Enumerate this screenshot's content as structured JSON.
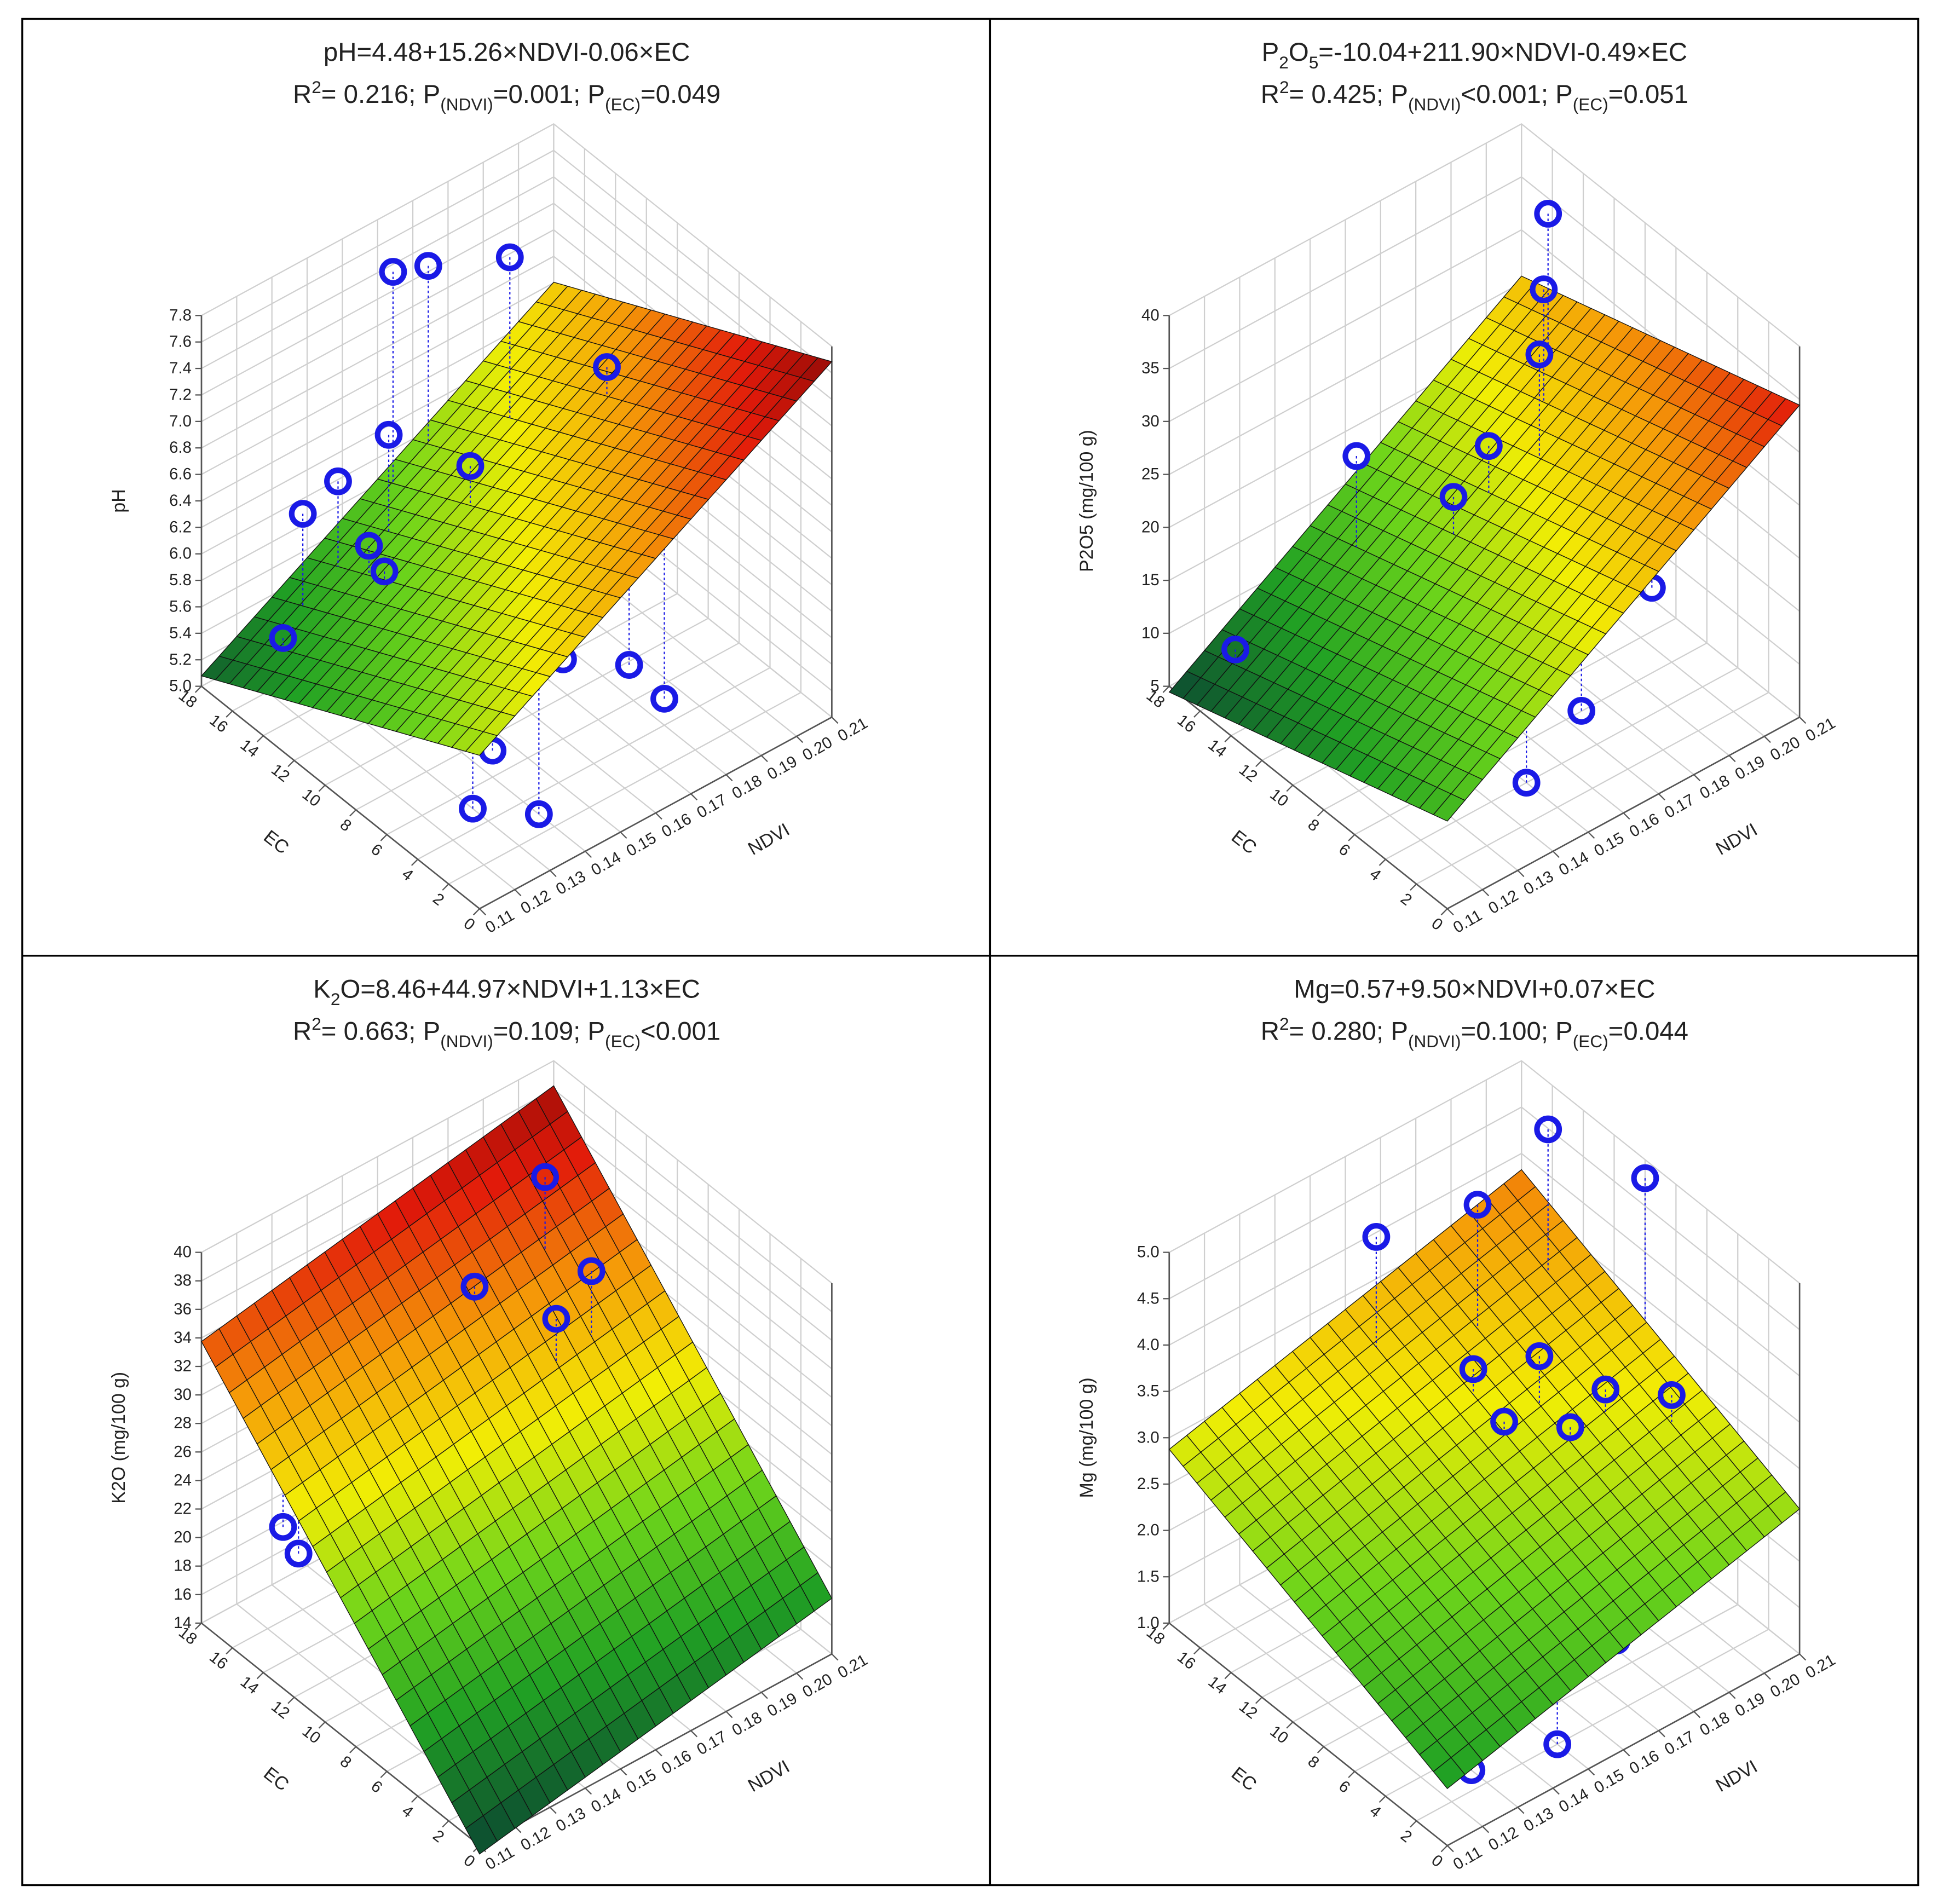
{
  "chart_data": [
    {
      "type": "surface3d",
      "title": [
        {
          "text": "pH=4.48+15.26×NDVI-0.06×EC"
        }
      ],
      "subtitle": [
        {
          "text": "R"
        },
        {
          "text": "2",
          "style": "sup"
        },
        {
          "text": "= 0.216; P"
        },
        {
          "text": "(NDVI)",
          "style": "sub"
        },
        {
          "text": "=0.001; P"
        },
        {
          "text": "(EC)",
          "style": "sub"
        },
        {
          "text": "=0.049"
        }
      ],
      "x_label": "NDVI",
      "y_label": "EC",
      "z_label": "pH",
      "surface": {
        "intercept": 4.48,
        "ndvi": 15.26,
        "ec": -0.06
      },
      "x": [
        0.18,
        0.17,
        0.16,
        0.19,
        0.15,
        0.14,
        0.16,
        0.17,
        0.18,
        0.13,
        0.14,
        0.14,
        0.15,
        0.15,
        0.12,
        0.13,
        0.15,
        0.16,
        0.17,
        0.14,
        0.13,
        0.14,
        0.18
      ],
      "y": [
        14,
        17,
        17,
        10,
        15,
        16,
        12,
        11,
        8,
        16,
        14,
        13,
        12,
        11,
        15,
        12,
        8,
        6,
        4,
        6,
        5,
        3,
        4
      ],
      "values": [
        7.6,
        7.4,
        7.5,
        7.0,
        6.6,
        6.3,
        6.5,
        6.4,
        6.4,
        6.2,
        6.0,
        5.9,
        6.0,
        5.9,
        5.5,
        5.4,
        5.5,
        5.6,
        5.6,
        5.2,
        5.0,
        5.0,
        5.2
      ],
      "xlim": [
        0.11,
        0.21
      ],
      "ylim": [
        0,
        18
      ],
      "zlim": [
        5.0,
        7.8
      ],
      "xticks": [
        0.11,
        0.12,
        0.13,
        0.14,
        0.15,
        0.16,
        0.17,
        0.18,
        0.19,
        {
          "value": 0.2,
          "label": "0.20"
        },
        0.21
      ],
      "yticks": [
        0,
        2,
        4,
        6,
        8,
        10,
        12,
        14,
        16,
        18
      ],
      "zticks": [
        {
          "value": 5,
          "label": "5.0"
        },
        5.2,
        5.4,
        5.6,
        5.8,
        {
          "value": 6,
          "label": "6.0"
        },
        6.2,
        6.4,
        6.6,
        6.8,
        {
          "value": 7,
          "label": "7.0"
        },
        7.2,
        7.4,
        7.6,
        7.8
      ],
      "marker_color": "#1a1ae6",
      "grid": true,
      "colormap": [
        "#0e5230",
        "#21a124",
        "#6cd41b",
        "#f2ee05",
        "#f59a08",
        "#e21a0a",
        "#7a0606"
      ]
    },
    {
      "type": "surface3d",
      "title": [
        {
          "text": "P"
        },
        {
          "text": "2",
          "style": "sub"
        },
        {
          "text": "O"
        },
        {
          "text": "5",
          "style": "sub"
        },
        {
          "text": "=-10.04+211.90×NDVI-0.49×EC"
        }
      ],
      "subtitle": [
        {
          "text": "R"
        },
        {
          "text": "2",
          "style": "sup"
        },
        {
          "text": "= 0.425; P"
        },
        {
          "text": "(NDVI)",
          "style": "sub"
        },
        {
          "text": "<0.001; P"
        },
        {
          "text": "(EC)",
          "style": "sub"
        },
        {
          "text": "=0.051"
        }
      ],
      "x_label": "NDVI",
      "y_label": "EC",
      "z_label": "P2O5 (mg/100 g)",
      "surface": {
        "intercept": -10.04,
        "ndvi": 211.9,
        "ec": -0.49
      },
      "x": [
        0.2,
        0.19,
        0.18,
        0.15,
        0.17,
        0.16,
        0.17,
        0.16,
        0.18,
        0.19,
        0.14,
        0.15,
        0.12,
        0.12,
        0.13,
        0.13,
        0.14,
        0.15,
        0.16,
        0.17,
        0.14,
        0.15
      ],
      "y": [
        14,
        12,
        10,
        15,
        11,
        11,
        9,
        9,
        6,
        5,
        12,
        9,
        16,
        14,
        13,
        10,
        8,
        7,
        6,
        5,
        6,
        4
      ],
      "values": [
        38,
        35,
        33,
        23,
        25,
        22,
        21,
        17,
        16,
        15,
        12,
        11,
        9,
        8,
        8,
        7,
        7,
        6,
        9,
        7,
        5,
        5
      ],
      "xlim": [
        0.11,
        0.21
      ],
      "ylim": [
        0,
        18
      ],
      "zlim": [
        5,
        40
      ],
      "xticks": [
        0.11,
        0.12,
        0.13,
        0.14,
        0.15,
        0.16,
        0.17,
        0.18,
        0.19,
        {
          "value": 0.2,
          "label": "0.20"
        },
        0.21
      ],
      "yticks": [
        0,
        2,
        4,
        6,
        8,
        10,
        12,
        14,
        16,
        18
      ],
      "zticks": [
        5,
        10,
        15,
        20,
        25,
        30,
        35,
        40
      ],
      "marker_color": "#1a1ae6",
      "grid": true,
      "colormap": [
        "#0e5230",
        "#21a124",
        "#6cd41b",
        "#f2ee05",
        "#f59a08",
        "#e21a0a",
        "#7a0606"
      ]
    },
    {
      "type": "surface3d",
      "title": [
        {
          "text": "K"
        },
        {
          "text": "2",
          "style": "sub"
        },
        {
          "text": "O=8.46+44.97×NDVI+1.13×EC"
        }
      ],
      "subtitle": [
        {
          "text": "R"
        },
        {
          "text": "2",
          "style": "sup"
        },
        {
          "text": "= 0.663; P"
        },
        {
          "text": "(NDVI)",
          "style": "sub"
        },
        {
          "text": "=0.109; P"
        },
        {
          "text": "(EC)",
          "style": "sub"
        },
        {
          "text": "<0.001"
        }
      ],
      "x_label": "NDVI",
      "y_label": "EC",
      "z_label": "K2O (mg/100 g)",
      "surface": {
        "intercept": 8.46,
        "ndvi": 44.97,
        "ec": 1.13
      },
      "x": [
        0.19,
        0.19,
        0.17,
        0.18,
        0.16,
        0.16,
        0.16,
        0.13,
        0.16,
        0.15,
        0.17,
        0.18,
        0.12,
        0.12,
        0.15,
        0.13,
        0.14,
        0.16,
        0.18,
        0.13,
        0.15,
        0.15,
        0.16
      ],
      "y": [
        14,
        11,
        14,
        11,
        16,
        14,
        13,
        16,
        10,
        13,
        9,
        7,
        15,
        14,
        9,
        11,
        9,
        5,
        3,
        8,
        4,
        3,
        2
      ],
      "values": [
        38,
        34,
        33,
        32,
        30,
        29,
        28,
        26,
        26,
        24,
        24,
        23,
        22,
        21,
        20,
        18,
        16,
        16,
        16,
        14,
        14,
        14,
        14
      ],
      "xlim": [
        0.11,
        0.21
      ],
      "ylim": [
        0,
        18
      ],
      "zlim": [
        14,
        40
      ],
      "xticks": [
        0.11,
        0.12,
        0.13,
        0.14,
        0.15,
        0.16,
        0.17,
        0.18,
        0.19,
        {
          "value": 0.2,
          "label": "0.20"
        },
        0.21
      ],
      "yticks": [
        0,
        2,
        4,
        6,
        8,
        10,
        12,
        14,
        16,
        18
      ],
      "zticks": [
        14,
        16,
        18,
        20,
        22,
        24,
        26,
        28,
        30,
        32,
        34,
        36,
        38,
        40
      ],
      "marker_color": "#1a1ae6",
      "grid": true,
      "colormap": [
        "#0e5230",
        "#21a124",
        "#6cd41b",
        "#f2ee05",
        "#f59a08",
        "#e21a0a",
        "#7a0606"
      ]
    },
    {
      "type": "surface3d",
      "title": [
        {
          "text": "Mg=0.57+9.50×NDVI+0.07×EC"
        }
      ],
      "subtitle": [
        {
          "text": "R"
        },
        {
          "text": "2",
          "style": "sup"
        },
        {
          "text": "= 0.280; P"
        },
        {
          "text": "(NDVI)",
          "style": "sub"
        },
        {
          "text": "=0.100; P"
        },
        {
          "text": "(EC)",
          "style": "sub"
        },
        {
          "text": "=0.044"
        }
      ],
      "x_label": "NDVI",
      "y_label": "EC",
      "z_label": "Mg (mg/100 g)",
      "surface": {
        "intercept": 0.57,
        "ndvi": 9.5,
        "ec": 0.07
      },
      "x": [
        0.2,
        0.21,
        0.16,
        0.18,
        0.17,
        0.18,
        0.19,
        0.2,
        0.17,
        0.18,
        0.13,
        0.19,
        0.21,
        0.14,
        0.15,
        0.16,
        0.17,
        0.18,
        0.16,
        0.17,
        0.18,
        0.14,
        0.13,
        0.15
      ],
      "y": [
        14,
        10,
        16,
        14,
        12,
        10,
        8,
        6,
        10,
        8,
        17,
        5,
        4,
        14,
        13,
        11,
        8,
        7,
        9,
        6,
        5,
        10,
        3,
        2
      ],
      "values": [
        5.0,
        4.8,
        4.4,
        4.6,
        3.3,
        3.5,
        3.2,
        3.2,
        3.0,
        3.0,
        2.6,
        2.4,
        2.5,
        2.0,
        1.9,
        1.9,
        1.6,
        1.6,
        1.3,
        1.2,
        1.1,
        1.0,
        1.0,
        1.0
      ],
      "xlim": [
        0.11,
        0.21
      ],
      "ylim": [
        0,
        18
      ],
      "zlim": [
        1.0,
        5.0
      ],
      "xticks": [
        0.11,
        0.12,
        0.13,
        0.14,
        0.15,
        0.16,
        0.17,
        0.18,
        0.19,
        {
          "value": 0.2,
          "label": "0.20"
        },
        0.21
      ],
      "yticks": [
        0,
        2,
        4,
        6,
        8,
        10,
        12,
        14,
        16,
        18
      ],
      "zticks": [
        {
          "value": 1,
          "label": "1.0"
        },
        1.5,
        {
          "value": 2,
          "label": "2.0"
        },
        2.5,
        {
          "value": 3,
          "label": "3.0"
        },
        3.5,
        {
          "value": 4,
          "label": "4.0"
        },
        4.5,
        {
          "value": 5,
          "label": "5.0"
        }
      ],
      "marker_color": "#1a1ae6",
      "grid": true,
      "colormap": [
        "#0e5230",
        "#21a124",
        "#6cd41b",
        "#f2ee05",
        "#f59a08",
        "#e21a0a",
        "#7a0606"
      ]
    }
  ]
}
